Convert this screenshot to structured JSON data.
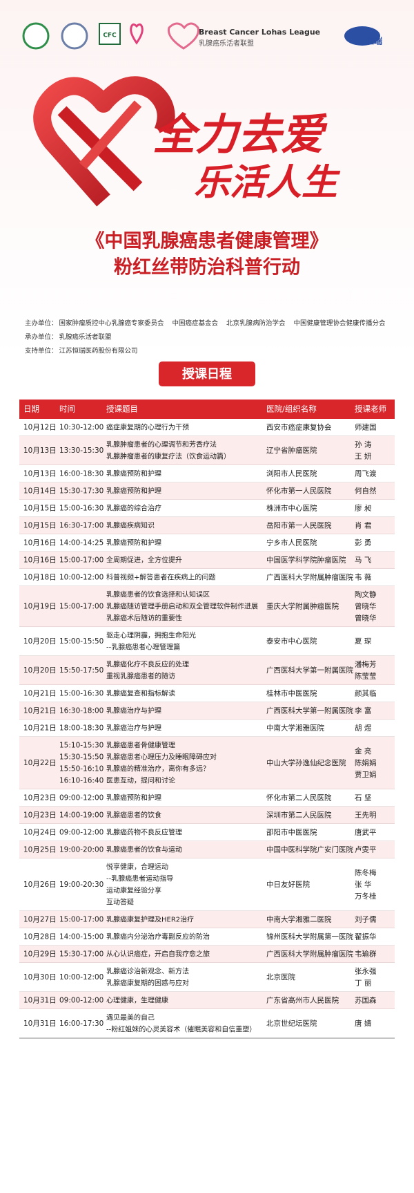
{
  "header": {
    "logo_cfc": "CFC",
    "league_en": "Breast Cancer Lohas League",
    "league_cn": "乳腺癌乐活者联盟",
    "sponsor_logo": "恒瑞"
  },
  "slogan": {
    "line1": "全力去爱",
    "line2": "乐活人生"
  },
  "title": {
    "line1": "《中国乳腺癌患者健康管理》",
    "line2": "粉红丝带防治科普行动"
  },
  "organizers": [
    {
      "label": "主办单位：",
      "items": [
        "国家肿瘤质控中心乳腺癌专家委员会",
        "中国癌症基金会",
        "北京乳腺病防治学会",
        "中国健康管理协会健康传播分会"
      ]
    },
    {
      "label": "承办单位：",
      "items": [
        "乳腺癌乐活者联盟"
      ]
    },
    {
      "label": "支持单位：",
      "items": [
        "江苏恒瑞医药股份有限公司"
      ]
    }
  ],
  "schedule_button": "授课日程",
  "table": {
    "columns": [
      "日期",
      "时间",
      "授课题目",
      "医院/组织名称",
      "授课老师"
    ],
    "rows": [
      {
        "date": "10月12日",
        "time": "10:30-12:00",
        "topic": "癌症康复期的心理行为干预",
        "hospital": "西安市癌症康复协会",
        "teacher": "师建国"
      },
      {
        "date": "10月13日",
        "time": "13:30-15:30",
        "topic": [
          "乳腺肿瘤患者的心理调节和芳香疗法",
          "乳腺肿瘤患者的康复疗法（饮食运动篇）"
        ],
        "hospital": "辽宁省肿瘤医院",
        "teacher": [
          "孙 涛",
          "王 妍"
        ]
      },
      {
        "date": "10月13日",
        "time": "16:00-18:30",
        "topic": "乳腺癌预防和护理",
        "hospital": "浏阳市人民医院",
        "teacher": "周飞渡"
      },
      {
        "date": "10月14日",
        "time": "15:30-17:30",
        "topic": "乳腺癌预防和护理",
        "hospital": "怀化市第一人民医院",
        "teacher": "何自然"
      },
      {
        "date": "10月15日",
        "time": "15:00-16:30",
        "topic": "乳腺癌的综合治疗",
        "hospital": "株洲市中心医院",
        "teacher": "廖 昶"
      },
      {
        "date": "10月15日",
        "time": "16:30-17:00",
        "topic": "乳腺癌疾病知识",
        "hospital": "岳阳市第一人民医院",
        "teacher": "肖 君"
      },
      {
        "date": "10月16日",
        "time": "14:00-14:25",
        "topic": "乳腺癌预防和护理",
        "hospital": "宁乡市人民医院",
        "teacher": "彭 勇"
      },
      {
        "date": "10月16日",
        "time": "15:00-17:00",
        "topic": "全周期促进，全方位提升",
        "hospital": "中国医学科学院肿瘤医院",
        "teacher": "马 飞"
      },
      {
        "date": "10月18日",
        "time": "10:00-12:00",
        "topic": "科普视频+解答患者在疾病上的问题",
        "hospital": "广西医科大学附属肿瘤医院",
        "teacher": "韦 薇"
      },
      {
        "date": "10月19日",
        "time": "15:00-17:00",
        "topic": [
          "乳腺癌患者的饮食选择和认知误区",
          "乳腺癌随访管理手册启动和双全管理软件制作进展",
          "乳腺癌术后随访的重要性"
        ],
        "hospital": "重庆大学附属肿瘤医院",
        "teacher": [
          "陶文静",
          "曾晓华",
          "曾晓华"
        ]
      },
      {
        "date": "10月20日",
        "time": "15:00-15:50",
        "topic": [
          "驱走心理阴霾，拥抱生命阳光",
          "--乳腺癌患者心理管理篇"
        ],
        "hospital": "泰安市中心医院",
        "teacher": "夏 琛"
      },
      {
        "date": "10月20日",
        "time": "15:50-17:50",
        "topic": [
          "乳腺癌化疗不良反应的处理",
          "重视乳腺癌患者的随访"
        ],
        "hospital": "广西医科大学第一附属医院",
        "teacher": [
          "潘梅芳",
          "陈莹莹"
        ]
      },
      {
        "date": "10月21日",
        "time": "15:00-16:30",
        "topic": "乳腺癌复查和指标解读",
        "hospital": "桂林市中医医院",
        "teacher": "颜其临"
      },
      {
        "date": "10月21日",
        "time": "16:30-18:00",
        "topic": "乳腺癌治疗与护理",
        "hospital": "广西医科大学第一附属医院",
        "teacher": "李 富"
      },
      {
        "date": "10月21日",
        "time": "18:00-18:30",
        "topic": "乳腺癌治疗与护理",
        "hospital": "中南大学湘雅医院",
        "teacher": "胡 煜"
      },
      {
        "date": "10月22日",
        "time": [
          "15:10-15:30",
          "15:30-15:50",
          "15:50-16:10",
          "16:10-16:40"
        ],
        "topic": [
          "乳腺癌患者骨健康管理",
          "乳腺癌患者心理压力及睡眠障碍应对",
          "乳腺癌的精准治疗，离你有多远？",
          "医患互动，提问和讨论"
        ],
        "hospital": "中山大学孙逸仙纪念医院",
        "teacher": [
          "金 亮",
          "陈娟娟",
          "贾卫娟"
        ]
      },
      {
        "date": "10月23日",
        "time": "09:00-12:00",
        "topic": "乳腺癌预防和护理",
        "hospital": "怀化市第二人民医院",
        "teacher": "石 坚"
      },
      {
        "date": "10月23日",
        "time": "14:00-19:00",
        "topic": "乳腺癌患者的饮食",
        "hospital": "深圳市第二人民医院",
        "teacher": "王先明"
      },
      {
        "date": "10月24日",
        "time": "09:00-12:00",
        "topic": "乳腺癌药物不良反应管理",
        "hospital": "邵阳市中医医院",
        "teacher": "唐武平"
      },
      {
        "date": "10月25日",
        "time": "19:00-20:00",
        "topic": "乳腺癌患者的饮食与运动",
        "hospital": "中国中医科学院广安门医院",
        "teacher": "卢雯平"
      },
      {
        "date": "10月26日",
        "time": "19:00-20:30",
        "topic": [
          "悦享健康，合理运动",
          "--乳腺癌患者运动指导",
          "运动康复经验分享",
          "互动答疑"
        ],
        "hospital": "中日友好医院",
        "teacher": [
          "陈冬梅",
          "张 华",
          "万冬桂"
        ]
      },
      {
        "date": "10月27日",
        "time": "15:00-17:00",
        "topic": "乳腺癌康复护理及HER2治疗",
        "hospital": "中南大学湘雅二医院",
        "teacher": "刘子儒"
      },
      {
        "date": "10月28日",
        "time": "14:00-15:00",
        "topic": "乳腺癌内分泌治疗毒副反应的防治",
        "hospital": "锦州医科大学附属第一医院",
        "teacher": "翟振华"
      },
      {
        "date": "10月29日",
        "time": "15:30-17:00",
        "topic": "从心认识癌症，开启自我疗愈之旅",
        "hospital": "广西医科大学附属肿瘤医院",
        "teacher": "韦瑜群"
      },
      {
        "date": "10月30日",
        "time": "10:00-12:00",
        "topic": [
          "乳腺癌诊治新观念、新方法",
          "乳腺癌康复期的困惑与应对"
        ],
        "hospital": "北京医院",
        "teacher": [
          "张永强",
          "丁 丽"
        ]
      },
      {
        "date": "10月31日",
        "time": "09:00-12:00",
        "topic": "心理健康，生理健康",
        "hospital": "广东省高州市人民医院",
        "teacher": "苏国森"
      },
      {
        "date": "10月31日",
        "time": "16:00-17:30",
        "topic": [
          "遇见最美的自己",
          "--粉红姐妹的心灵美容术（催眠美容和自信重塑）"
        ],
        "hospital": "北京世纪坛医院",
        "teacher": "唐 婧"
      }
    ]
  }
}
